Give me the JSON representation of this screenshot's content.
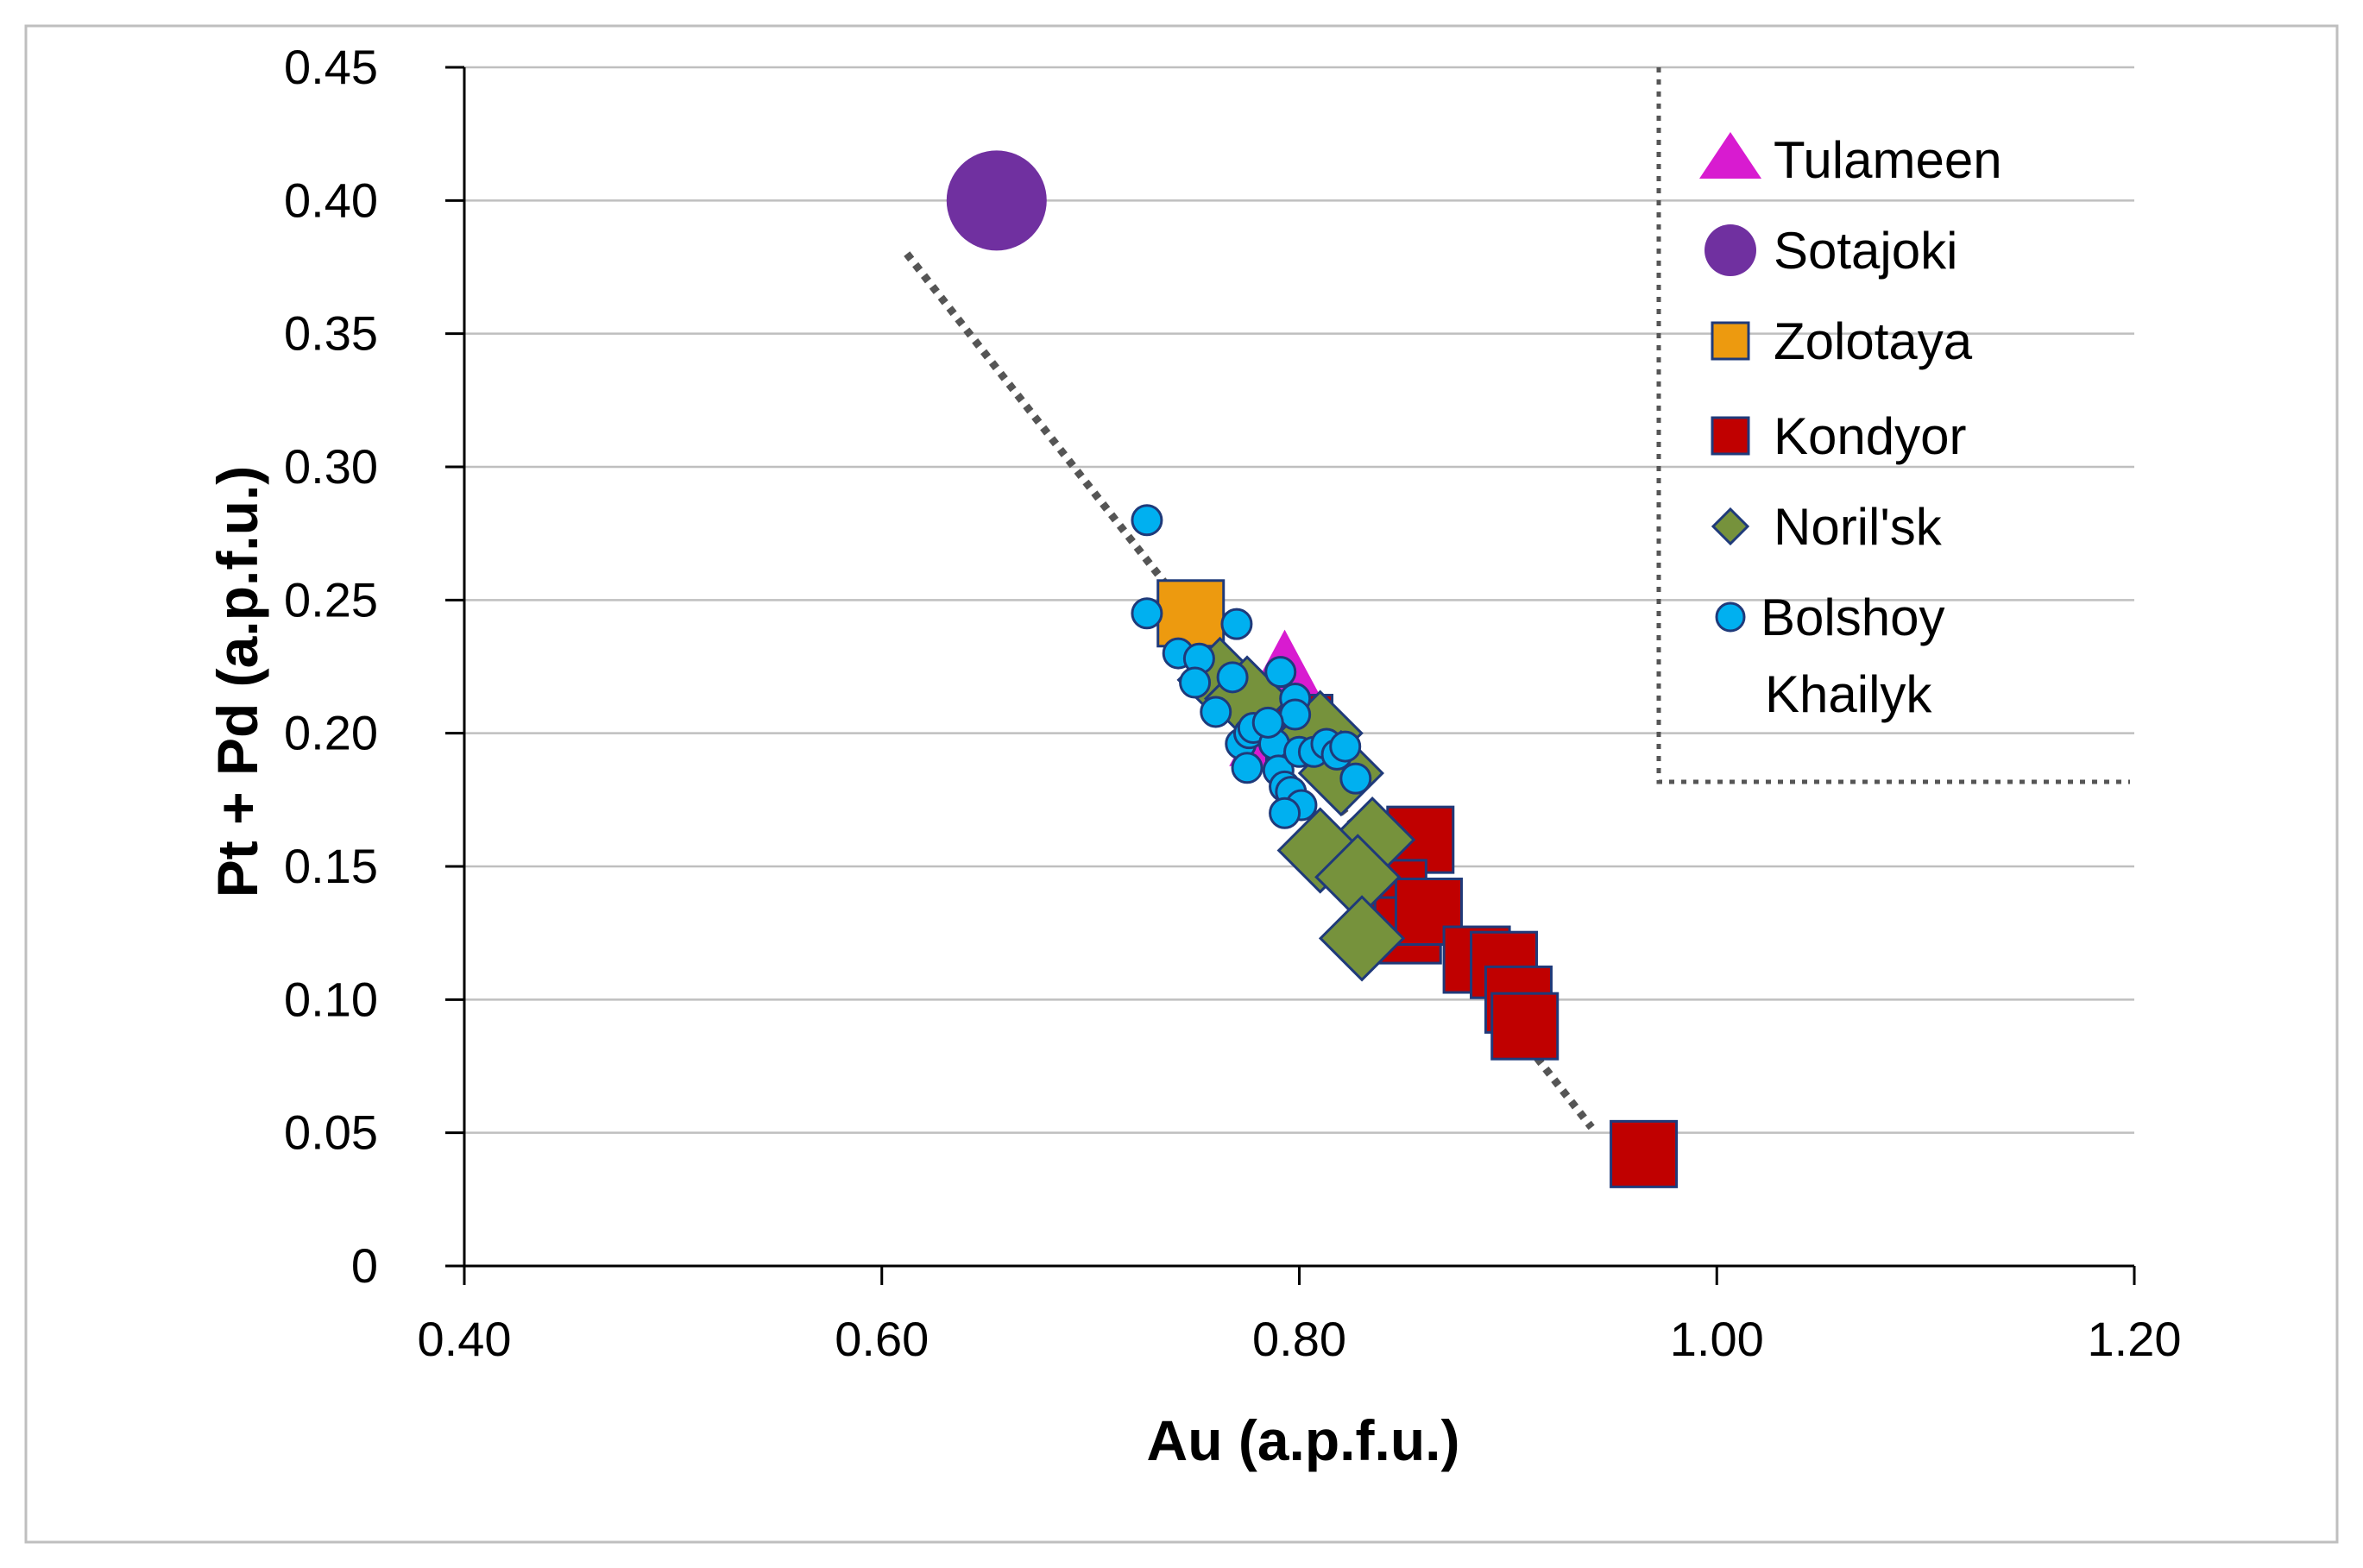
{
  "chart_data": {
    "type": "scatter",
    "title": "",
    "xlabel": "Au (a.p.f.u.)",
    "ylabel": "Pt + Pd (a.p.f.u.)",
    "xlim": [
      0.4,
      1.2
    ],
    "ylim": [
      0,
      0.45
    ],
    "x_ticks": [
      "0.40",
      "0.60",
      "0.80",
      "1.00",
      "1.20"
    ],
    "y_ticks": [
      "0",
      "0.05",
      "0.10",
      "0.15",
      "0.20",
      "0.25",
      "0.30",
      "0.35",
      "0.40",
      "0.45"
    ],
    "grid": "horizontal",
    "legend_position": "top-right",
    "trendline": {
      "style": "dotted",
      "color": "#555555",
      "points": [
        [
          0.612,
          0.38
        ],
        [
          0.94,
          0.052
        ]
      ]
    },
    "series": [
      {
        "name": "Tulameen",
        "marker": "triangle",
        "color": "#d81bd0",
        "size": "large",
        "points": [
          [
            0.793,
            0.222
          ],
          [
            0.785,
            0.198
          ],
          [
            0.808,
            0.2
          ]
        ]
      },
      {
        "name": "Sotajoki",
        "marker": "circle",
        "color": "#7030a0",
        "size": "large",
        "points": [
          [
            0.655,
            0.4
          ]
        ]
      },
      {
        "name": "Zolotaya",
        "marker": "square",
        "color": "#ed9a0f",
        "size": "large",
        "points": [
          [
            0.748,
            0.245
          ]
        ]
      },
      {
        "name": "Kondyor",
        "marker": "square",
        "color": "#c00000",
        "size": "large",
        "points": [
          [
            0.8,
            0.202
          ],
          [
            0.858,
            0.16
          ],
          [
            0.845,
            0.14
          ],
          [
            0.852,
            0.126
          ],
          [
            0.862,
            0.133
          ],
          [
            0.885,
            0.115
          ],
          [
            0.898,
            0.113
          ],
          [
            0.905,
            0.1
          ],
          [
            0.908,
            0.09
          ],
          [
            0.965,
            0.042
          ]
        ]
      },
      {
        "name": "Noril'sk",
        "marker": "diamond",
        "color": "#76923c",
        "size": "large",
        "points": [
          [
            0.762,
            0.22
          ],
          [
            0.775,
            0.213
          ],
          [
            0.81,
            0.2
          ],
          [
            0.82,
            0.185
          ],
          [
            0.835,
            0.16
          ],
          [
            0.81,
            0.156
          ],
          [
            0.828,
            0.146
          ],
          [
            0.83,
            0.123
          ]
        ]
      },
      {
        "name": "Bolshoy Khailyk",
        "marker": "circle",
        "color": "#00b0f0",
        "size": "small",
        "points": [
          [
            0.727,
            0.28
          ],
          [
            0.727,
            0.245
          ],
          [
            0.742,
            0.23
          ],
          [
            0.752,
            0.228
          ],
          [
            0.75,
            0.219
          ],
          [
            0.76,
            0.208
          ],
          [
            0.77,
            0.241
          ],
          [
            0.768,
            0.221
          ],
          [
            0.791,
            0.223
          ],
          [
            0.772,
            0.196
          ],
          [
            0.775,
            0.187
          ],
          [
            0.776,
            0.2
          ],
          [
            0.778,
            0.202
          ],
          [
            0.788,
            0.196
          ],
          [
            0.79,
            0.186
          ],
          [
            0.793,
            0.18
          ],
          [
            0.796,
            0.178
          ],
          [
            0.798,
            0.213
          ],
          [
            0.8,
            0.193
          ],
          [
            0.801,
            0.173
          ],
          [
            0.793,
            0.17
          ],
          [
            0.798,
            0.207
          ],
          [
            0.807,
            0.193
          ],
          [
            0.813,
            0.196
          ],
          [
            0.818,
            0.192
          ],
          [
            0.822,
            0.195
          ],
          [
            0.827,
            0.183
          ],
          [
            0.785,
            0.204
          ]
        ]
      }
    ]
  }
}
